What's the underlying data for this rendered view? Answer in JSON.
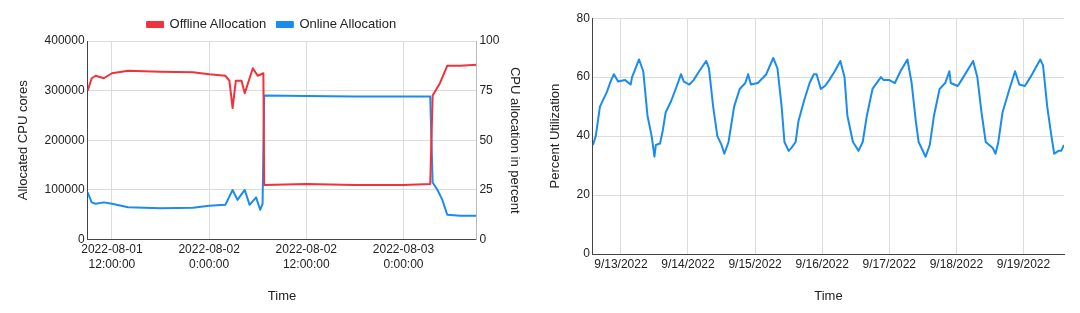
{
  "chart_data": [
    {
      "type": "line",
      "xlabel": "Time",
      "ylabel": "Allocated CPU cores",
      "y2label": "CPU allocation in percent",
      "legend": "top",
      "grid": true,
      "xlim": [
        "2022-08-01T09:00",
        "2022-08-03T09:00"
      ],
      "xticks": [
        {
          "value": "2022-08-01T12:00",
          "label": "2022-08-01 12:00:00"
        },
        {
          "value": "2022-08-02T00:00",
          "label": "2022-08-02 0:00:00"
        },
        {
          "value": "2022-08-02T12:00",
          "label": "2022-08-02 12:00:00"
        },
        {
          "value": "2022-08-03T00:00",
          "label": "2022-08-03 0:00:00"
        }
      ],
      "ylim": [
        0,
        400000
      ],
      "yticks": [
        0,
        100000,
        200000,
        300000,
        400000
      ],
      "y2lim": [
        0,
        100
      ],
      "y2ticks": [
        0,
        25,
        50,
        75,
        100
      ],
      "series": [
        {
          "name": "Offline Allocation",
          "color": "#f0323c",
          "x": [
            "2022-08-01T09:00",
            "2022-08-01T09:30",
            "2022-08-01T10:00",
            "2022-08-01T11:00",
            "2022-08-01T12:00",
            "2022-08-01T14:00",
            "2022-08-01T18:00",
            "2022-08-01T22:00",
            "2022-08-02T00:00",
            "2022-08-02T02:00",
            "2022-08-02T02:30",
            "2022-08-02T02:54",
            "2022-08-02T03:18",
            "2022-08-02T04:00",
            "2022-08-02T04:24",
            "2022-08-02T05:00",
            "2022-08-02T05:24",
            "2022-08-02T06:00",
            "2022-08-02T06:42",
            "2022-08-02T06:48",
            "2022-08-02T12:00",
            "2022-08-02T18:00",
            "2022-08-03T00:00",
            "2022-08-03T03:18",
            "2022-08-03T03:36",
            "2022-08-03T04:30",
            "2022-08-03T05:24",
            "2022-08-03T07:00",
            "2022-08-03T09:00"
          ],
          "values": [
            300000,
            325000,
            330000,
            325000,
            335000,
            340000,
            338000,
            337000,
            333000,
            330000,
            320000,
            265000,
            320000,
            320000,
            295000,
            325000,
            345000,
            330000,
            335000,
            110000,
            112000,
            110000,
            110000,
            112000,
            290000,
            315000,
            350000,
            350000,
            352000
          ]
        },
        {
          "name": "Online Allocation",
          "color": "#1a8cf0",
          "x": [
            "2022-08-01T09:00",
            "2022-08-01T09:30",
            "2022-08-01T10:00",
            "2022-08-01T11:00",
            "2022-08-01T12:00",
            "2022-08-01T14:00",
            "2022-08-01T18:00",
            "2022-08-01T22:00",
            "2022-08-02T00:00",
            "2022-08-02T02:00",
            "2022-08-02T02:54",
            "2022-08-02T03:30",
            "2022-08-02T04:24",
            "2022-08-02T05:00",
            "2022-08-02T05:48",
            "2022-08-02T06:18",
            "2022-08-02T06:36",
            "2022-08-02T06:48",
            "2022-08-02T12:00",
            "2022-08-02T18:00",
            "2022-08-03T00:00",
            "2022-08-03T03:18",
            "2022-08-03T03:36",
            "2022-08-03T04:12",
            "2022-08-03T04:48",
            "2022-08-03T05:24",
            "2022-08-03T07:00",
            "2022-08-03T09:00"
          ],
          "values": [
            95000,
            75000,
            72000,
            75000,
            72000,
            65000,
            63000,
            64000,
            68000,
            70000,
            100000,
            80000,
            100000,
            70000,
            85000,
            60000,
            72000,
            290000,
            289000,
            288000,
            288000,
            288000,
            115000,
            100000,
            80000,
            50000,
            48000,
            48000
          ]
        }
      ]
    },
    {
      "type": "line",
      "xlabel": "Time",
      "ylabel": "Percent Utilization",
      "legend": false,
      "grid": true,
      "xlim": [
        "2022-09-12T14:00",
        "2022-09-19T14:30"
      ],
      "xticks": [
        {
          "value": "2022-09-13",
          "label": "9/13/2022"
        },
        {
          "value": "2022-09-14",
          "label": "9/14/2022"
        },
        {
          "value": "2022-09-15",
          "label": "9/15/2022"
        },
        {
          "value": "2022-09-16",
          "label": "9/16/2022"
        },
        {
          "value": "2022-09-17",
          "label": "9/17/2022"
        },
        {
          "value": "2022-09-18",
          "label": "9/18/2022"
        },
        {
          "value": "2022-09-19",
          "label": "9/19/2022"
        }
      ],
      "ylim": [
        0,
        80
      ],
      "yticks": [
        0,
        20,
        40,
        60,
        80
      ],
      "series": [
        {
          "color": "#1a8cf0",
          "x": [
            "2022-09-12T14:00",
            "2022-09-12T15:00",
            "2022-09-12T16:30",
            "2022-09-12T19:00",
            "2022-09-12T20:30",
            "2022-09-12T21:30",
            "2022-09-12T23:00",
            "2022-09-13T01:30",
            "2022-09-13T03:30",
            "2022-09-13T04:00",
            "2022-09-13T06:30",
            "2022-09-13T08:00",
            "2022-09-13T09:30",
            "2022-09-13T11:00",
            "2022-09-13T12:00",
            "2022-09-13T12:30",
            "2022-09-13T14:00",
            "2022-09-13T15:00",
            "2022-09-13T16:00",
            "2022-09-13T18:00",
            "2022-09-13T20:00",
            "2022-09-13T21:30",
            "2022-09-13T22:30",
            "2022-09-14T00:30",
            "2022-09-14T02:00",
            "2022-09-14T04:00",
            "2022-09-14T06:30",
            "2022-09-14T07:30",
            "2022-09-14T09:00",
            "2022-09-14T10:30",
            "2022-09-14T12:00",
            "2022-09-14T13:00",
            "2022-09-14T14:30",
            "2022-09-14T16:30",
            "2022-09-14T18:30",
            "2022-09-14T20:30",
            "2022-09-14T21:30",
            "2022-09-14T22:30",
            "2022-09-15T01:00",
            "2022-09-15T04:00",
            "2022-09-15T06:30",
            "2022-09-15T08:00",
            "2022-09-15T09:30",
            "2022-09-15T10:30",
            "2022-09-15T12:00",
            "2022-09-15T13:00",
            "2022-09-15T14:30",
            "2022-09-15T15:30",
            "2022-09-15T17:30",
            "2022-09-15T19:30",
            "2022-09-15T21:00",
            "2022-09-15T22:00",
            "2022-09-15T23:30",
            "2022-09-16T01:00",
            "2022-09-16T02:30",
            "2022-09-16T04:30",
            "2022-09-16T06:30",
            "2022-09-16T08:00",
            "2022-09-16T09:00",
            "2022-09-16T11:00",
            "2022-09-16T13:00",
            "2022-09-16T14:30",
            "2022-09-16T16:00",
            "2022-09-16T18:00",
            "2022-09-16T21:00",
            "2022-09-16T22:00",
            "2022-09-17T00:00",
            "2022-09-17T02:00",
            "2022-09-17T04:00",
            "2022-09-17T06:30",
            "2022-09-17T08:00",
            "2022-09-17T09:30",
            "2022-09-17T10:30",
            "2022-09-17T13:00",
            "2022-09-17T14:30",
            "2022-09-17T16:00",
            "2022-09-17T18:00",
            "2022-09-17T20:00",
            "2022-09-17T21:30",
            "2022-09-17T22:00",
            "2022-09-18T00:30",
            "2022-09-18T02:30",
            "2022-09-18T06:00",
            "2022-09-18T07:30",
            "2022-09-18T09:00",
            "2022-09-18T10:30",
            "2022-09-18T13:00",
            "2022-09-18T14:00",
            "2022-09-18T15:00",
            "2022-09-18T16:30",
            "2022-09-18T19:00",
            "2022-09-18T21:00",
            "2022-09-18T22:30",
            "2022-09-19T00:30",
            "2022-09-19T02:30",
            "2022-09-19T06:00",
            "2022-09-19T07:00",
            "2022-09-19T08:30",
            "2022-09-19T10:00",
            "2022-09-19T11:00",
            "2022-09-19T12:30",
            "2022-09-19T13:30",
            "2022-09-19T14:30"
          ],
          "values": [
            37,
            40,
            50,
            55,
            59,
            61,
            58.5,
            59,
            57.5,
            60,
            66,
            62,
            47,
            40,
            33,
            37,
            37.5,
            42,
            48,
            52,
            57,
            61,
            58.5,
            57.5,
            59,
            62,
            65.5,
            63,
            50,
            40,
            37,
            34,
            38,
            50,
            56,
            58,
            61,
            57.5,
            58,
            61,
            66.5,
            63,
            50,
            38,
            35,
            36,
            38,
            45,
            52,
            58,
            61,
            61,
            56,
            57,
            59,
            62,
            65.5,
            60,
            47,
            38,
            35,
            38,
            47,
            56,
            60,
            59,
            59,
            58,
            62,
            66,
            58,
            45,
            38,
            33,
            37,
            47,
            56,
            58,
            62,
            58,
            57,
            60,
            65.5,
            60,
            48,
            38,
            36,
            34,
            38,
            48,
            56,
            62,
            57.5,
            57,
            60,
            66,
            64,
            50,
            40,
            34,
            35,
            35,
            37
          ]
        }
      ]
    }
  ]
}
